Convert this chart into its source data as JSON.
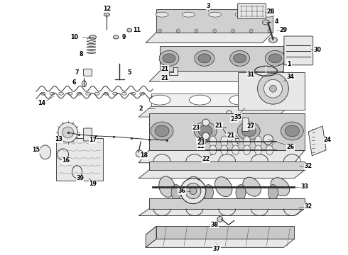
{
  "background_color": "#ffffff",
  "line_color": "#2a2a2a",
  "figure_width": 4.9,
  "figure_height": 3.6,
  "dpi": 100,
  "lw": 0.6,
  "label_fontsize": 5.8
}
